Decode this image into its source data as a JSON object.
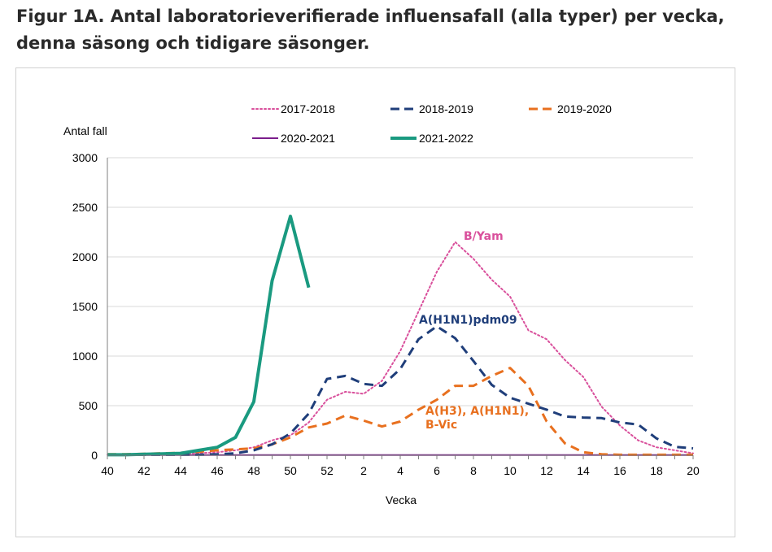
{
  "title": {
    "line1": "Figur 1A. Antal laboratorieverifierade influensafall (alla typer) per vecka,",
    "line2": "denna säsong och tidigare säsonger."
  },
  "chart_data": {
    "type": "line",
    "ylabel": "Antal fall",
    "xlabel": "Vecka",
    "ylim": [
      0,
      3000
    ],
    "yticks": [
      0,
      500,
      1000,
      1500,
      2000,
      2500,
      3000
    ],
    "ytick_labels": [
      "0",
      "500",
      "1000",
      "1500",
      "2000",
      "2500",
      "3000"
    ],
    "xtick_labels": [
      "40",
      "42",
      "44",
      "46",
      "48",
      "50",
      "52",
      "2",
      "4",
      "6",
      "8",
      "10",
      "12",
      "14",
      "16",
      "18",
      "20"
    ],
    "categories": [
      "40",
      "41",
      "42",
      "43",
      "44",
      "45",
      "46",
      "47",
      "48",
      "49",
      "50",
      "51",
      "52",
      "1",
      "2",
      "3",
      "4",
      "5",
      "6",
      "7",
      "8",
      "9",
      "10",
      "11",
      "12",
      "13",
      "14",
      "15",
      "16",
      "17",
      "18",
      "19",
      "20"
    ],
    "grid": true,
    "legend": "top",
    "series": [
      {
        "name": "2017-2018",
        "color": "#d9509c",
        "style": "dotted",
        "values": [
          5,
          8,
          10,
          12,
          15,
          20,
          30,
          50,
          80,
          150,
          200,
          330,
          560,
          640,
          620,
          750,
          1050,
          1450,
          1850,
          2150,
          1980,
          1770,
          1600,
          1260,
          1170,
          960,
          790,
          490,
          300,
          150,
          80,
          50,
          20
        ]
      },
      {
        "name": "2018-2019",
        "color": "#1f3e7a",
        "style": "dashed",
        "values": [
          5,
          5,
          5,
          5,
          5,
          5,
          10,
          20,
          50,
          110,
          220,
          420,
          770,
          800,
          720,
          700,
          870,
          1170,
          1300,
          1180,
          950,
          710,
          580,
          520,
          460,
          390,
          380,
          375,
          330,
          310,
          170,
          85,
          70
        ]
      },
      {
        "name": "2019-2020",
        "color": "#e8701f",
        "style": "dashed",
        "values": [
          10,
          10,
          15,
          20,
          25,
          35,
          50,
          60,
          70,
          110,
          180,
          280,
          320,
          400,
          350,
          290,
          340,
          460,
          560,
          700,
          700,
          800,
          880,
          700,
          340,
          120,
          30,
          10,
          5,
          5,
          5,
          5,
          5
        ]
      },
      {
        "name": "2020-2021",
        "color": "#7b1d8c",
        "style": "solid",
        "values": [
          2,
          2,
          2,
          2,
          2,
          2,
          2,
          2,
          2,
          2,
          2,
          2,
          2,
          2,
          2,
          2,
          2,
          2,
          2,
          2,
          2,
          2,
          2,
          2,
          2,
          2,
          2,
          2,
          2,
          2,
          2,
          2,
          2
        ]
      },
      {
        "name": "2021-2022",
        "color": "#1a9a80",
        "style": "thick",
        "values": [
          5,
          5,
          10,
          15,
          20,
          50,
          80,
          180,
          540,
          1760,
          2410,
          1690,
          null,
          null,
          null,
          null,
          null,
          null,
          null,
          null,
          null,
          null,
          null,
          null,
          null,
          null,
          null,
          null,
          null,
          null,
          null,
          null,
          null
        ]
      }
    ],
    "annotations": [
      {
        "text": "B/Yam",
        "color": "#d9509c"
      },
      {
        "text": "A(H1N1)pdm09",
        "color": "#1f3e7a"
      },
      {
        "text": "A(H3), A(H1N1),",
        "color": "#e8701f"
      },
      {
        "text": "B-Vic",
        "color": "#e8701f"
      }
    ]
  }
}
